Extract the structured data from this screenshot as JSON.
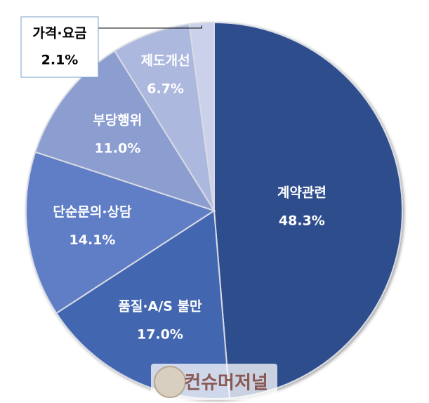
{
  "chart_data": {
    "type": "pie",
    "categories": [
      "계약관련",
      "품질·A/S 불만",
      "단순문의·상담",
      "부당행위",
      "제도개선",
      "가격·요금"
    ],
    "values": [
      48.3,
      17.0,
      14.1,
      11.0,
      6.7,
      2.1
    ],
    "value_labels": [
      "48.3%",
      "17.0%",
      "14.1%",
      "11.0%",
      "6.7%",
      "2.1%"
    ],
    "colors": [
      "#2e4d8c",
      "#4266b0",
      "#5f7ec6",
      "#8c9dd0",
      "#adb8de",
      "#cbd1ea"
    ],
    "watermark": "컨슈머저널"
  }
}
